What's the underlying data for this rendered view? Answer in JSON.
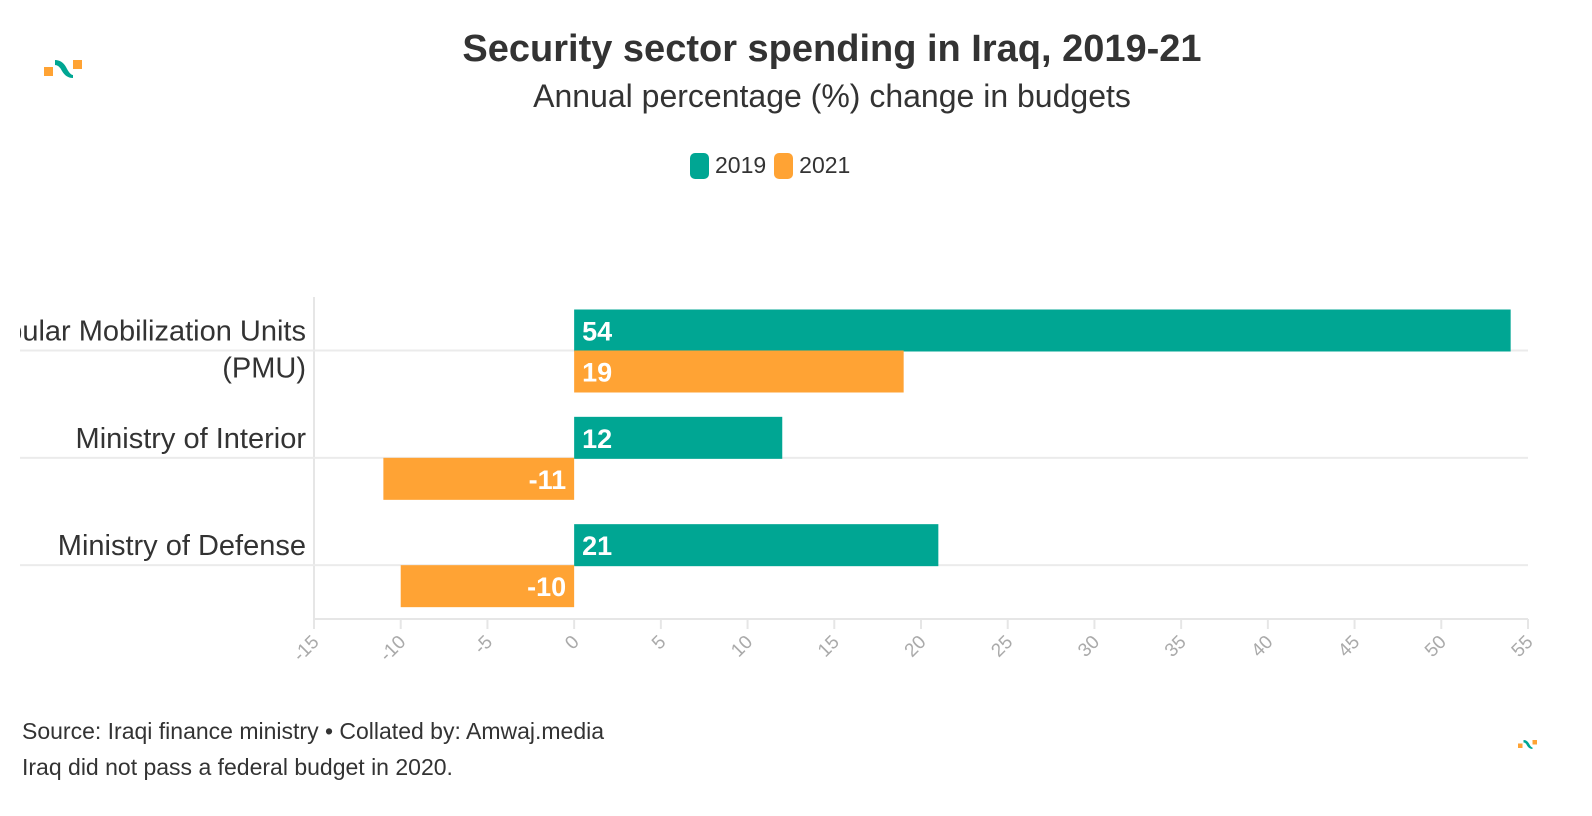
{
  "title": "Security sector spending in Iraq, 2019-21",
  "subtitle": "Annual percentage (%) change in budgets",
  "footer": {
    "source": "Source: Iraqi finance ministry • Collated by: Amwaj.media",
    "note": "Iraq did not pass a federal budget in 2020."
  },
  "logo": "amwaj-logo",
  "chart_data": {
    "type": "bar",
    "orientation": "horizontal",
    "categories": [
      "Popular Mobilization Units (PMU)",
      "Ministry of Interior",
      "Ministry of Defense"
    ],
    "series": [
      {
        "name": "2019",
        "color": "#00a693",
        "values": [
          54,
          12,
          21
        ]
      },
      {
        "name": "2021",
        "color": "#ffa334",
        "values": [
          19,
          -11,
          -10
        ]
      }
    ],
    "xlim": [
      -15,
      55
    ],
    "xticks": [
      -15,
      -10,
      -5,
      0,
      5,
      10,
      15,
      20,
      25,
      30,
      35,
      40,
      45,
      50,
      55
    ],
    "grid": true,
    "legend": "top-center",
    "data_labels": true
  }
}
